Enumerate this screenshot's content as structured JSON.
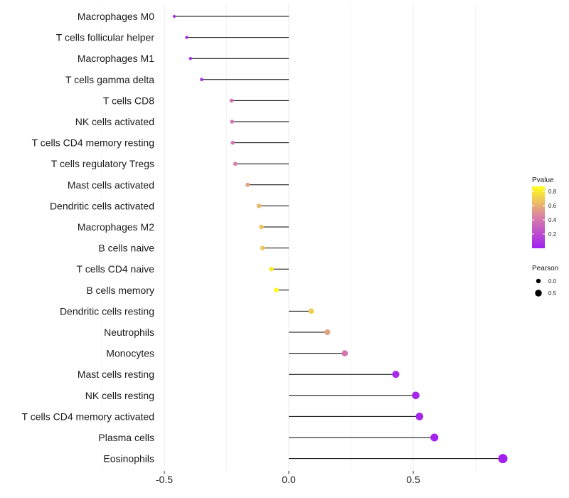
{
  "chart_data": {
    "type": "lollipop",
    "title": "",
    "xlabel": "",
    "ylabel": "",
    "xlim": [
      -0.5,
      0.9
    ],
    "x_ticks": [
      {
        "value": -0.5,
        "label": "-0.5"
      },
      {
        "value": 0.0,
        "label": "0.0"
      },
      {
        "value": 0.5,
        "label": "0.5"
      }
    ],
    "grid": true,
    "categories": [
      "Macrophages M0",
      "T cells follicular helper",
      "Macrophages M1",
      "T cells gamma delta",
      "T cells CD8",
      "NK cells activated",
      "T cells CD4 memory resting",
      "T cells regulatory  Tregs",
      "Mast cells activated",
      "Dendritic cells activated",
      "Macrophages M2",
      "B cells naive",
      "T cells CD4 naive",
      "B cells memory",
      "Dendritic cells resting",
      "Neutrophils",
      "Monocytes",
      "Mast cells resting",
      "NK cells resting",
      "T cells CD4 memory activated",
      "Plasma cells",
      "Eosinophils"
    ],
    "pearson": [
      -0.46,
      -0.41,
      -0.395,
      -0.35,
      -0.23,
      -0.228,
      -0.225,
      -0.215,
      -0.165,
      -0.12,
      -0.11,
      -0.105,
      -0.07,
      -0.05,
      0.09,
      0.155,
      0.225,
      0.43,
      0.51,
      0.525,
      0.585,
      0.86
    ],
    "pvalue": [
      0.02,
      0.05,
      0.07,
      0.1,
      0.38,
      0.38,
      0.39,
      0.43,
      0.55,
      0.63,
      0.67,
      0.68,
      0.8,
      0.85,
      0.7,
      0.55,
      0.39,
      0.05,
      0.03,
      0.03,
      0.02,
      0.001
    ],
    "color_legend": {
      "title": "Pvalue",
      "ticks": [
        "0.8",
        "0.6",
        "0.4",
        "0.2"
      ],
      "tick_values": [
        0.8,
        0.6,
        0.4,
        0.2
      ],
      "range": [
        0.0,
        0.87
      ],
      "low_color": "#a020f0",
      "mid_color": "#d97fa9",
      "high_color": "#ffff1a"
    },
    "size_legend": {
      "title": "Pearson",
      "entries": [
        "0.0",
        "0.5"
      ],
      "values": [
        0.0,
        0.5
      ]
    },
    "legend_position": "right",
    "colors": {
      "stem": "#000000",
      "grid": "#ebebeb",
      "text": "#1a1a1a"
    }
  }
}
